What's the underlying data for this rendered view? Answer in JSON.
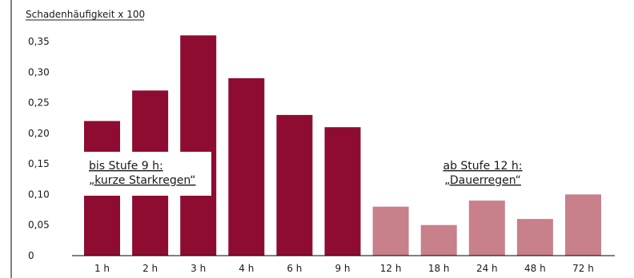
{
  "chart_data": {
    "type": "bar",
    "ylabel": "Schadenhäufigkeit x 100",
    "categories": [
      "1 h",
      "2 h",
      "3 h",
      "4 h",
      "6 h",
      "9 h",
      "12 h",
      "18 h",
      "24 h",
      "48 h",
      "72 h"
    ],
    "values": [
      0.22,
      0.27,
      0.36,
      0.29,
      0.23,
      0.21,
      0.08,
      0.05,
      0.09,
      0.06,
      0.1
    ],
    "ylim": [
      0,
      0.36
    ],
    "yticks": [
      "0",
      "0,05",
      "0,10",
      "0,15",
      "0,20",
      "0,25",
      "0,30",
      "0,35"
    ],
    "ytick_values": [
      0,
      0.05,
      0.1,
      0.15,
      0.2,
      0.25,
      0.3,
      0.35
    ],
    "grid": false,
    "colors": {
      "short_rain": "#8e0c32",
      "long_rain": "#c8808a",
      "text": "#1a1a1a",
      "axis": "#000000"
    },
    "annotations": [
      {
        "group": "short_rain",
        "line1": "bis Stufe 9 h:",
        "line2": "„kurze Starkregen“"
      },
      {
        "group": "long_rain",
        "line1": "ab Stufe 12 h:",
        "line2": "„Dauerregen“"
      }
    ],
    "groups": [
      "short_rain",
      "short_rain",
      "short_rain",
      "short_rain",
      "short_rain",
      "short_rain",
      "long_rain",
      "long_rain",
      "long_rain",
      "long_rain",
      "long_rain"
    ]
  }
}
